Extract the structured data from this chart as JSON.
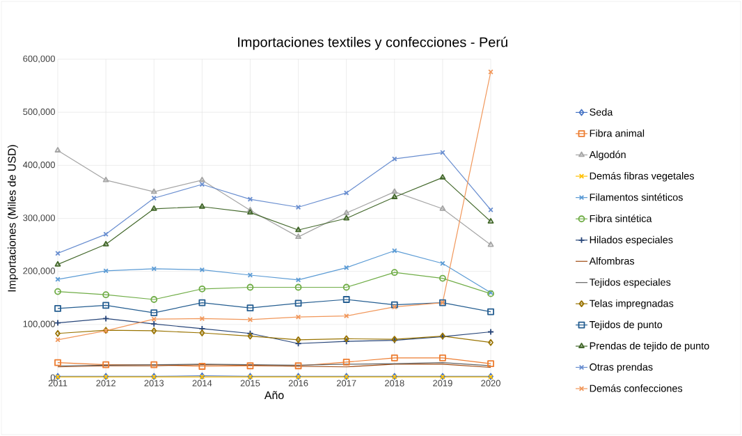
{
  "chart_data": {
    "type": "line",
    "title": "Importaciones textiles y confecciones - Perú",
    "xlabel": "Año",
    "ylabel": "Importaciones (Miles de USD)",
    "x": [
      2011,
      2012,
      2013,
      2014,
      2015,
      2016,
      2017,
      2018,
      2019,
      2020
    ],
    "xlim": [
      2011,
      2020
    ],
    "xticks": [
      2011,
      2012,
      2013,
      2014,
      2015,
      2016,
      2017,
      2018,
      2019,
      2020
    ],
    "ylim": [
      0,
      600000
    ],
    "yticks": [
      {
        "value": 0,
        "label": "0"
      },
      {
        "value": 100000,
        "label": "100,000"
      },
      {
        "value": 200000,
        "label": "200,000"
      },
      {
        "value": 300000,
        "label": "300,000"
      },
      {
        "value": 400000,
        "label": "400,000"
      },
      {
        "value": 500000,
        "label": "500,000"
      },
      {
        "value": 600000,
        "label": "600,000"
      }
    ],
    "grid": true,
    "legend": "right",
    "series": [
      {
        "name": "Seda",
        "color": "#4472c4",
        "marker": "diamond",
        "values": [
          2000,
          2000,
          2000,
          3000,
          2000,
          2000,
          2000,
          2000,
          2000,
          2000
        ]
      },
      {
        "name": "Fibra animal",
        "color": "#ed7d31",
        "marker": "square",
        "values": [
          28000,
          24000,
          24000,
          21000,
          22000,
          22000,
          29000,
          37000,
          37000,
          26000
        ]
      },
      {
        "name": "Algodón",
        "color": "#a5a5a5",
        "marker": "triangle",
        "values": [
          428000,
          372000,
          350000,
          372000,
          315000,
          265000,
          310000,
          350000,
          318000,
          250000
        ]
      },
      {
        "name": "Demás fibras vegetales",
        "color": "#ffc000",
        "marker": "cross",
        "values": [
          1000,
          1000,
          1000,
          1000,
          1000,
          1000,
          1000,
          1000,
          1000,
          1000
        ]
      },
      {
        "name": "Filamentos sintéticos",
        "color": "#5b9bd5",
        "marker": "cross",
        "values": [
          185000,
          201000,
          205000,
          203000,
          193000,
          184000,
          207000,
          239000,
          215000,
          160000
        ]
      },
      {
        "name": "Fibra sintética",
        "color": "#70ad47",
        "marker": "circle",
        "values": [
          162000,
          156000,
          147000,
          167000,
          170000,
          170000,
          170000,
          198000,
          187000,
          158000
        ]
      },
      {
        "name": "Hilados especiales",
        "color": "#264478",
        "marker": "plus",
        "values": [
          103000,
          111000,
          101000,
          92000,
          83000,
          64000,
          68000,
          70000,
          77000,
          86000
        ]
      },
      {
        "name": "Alfombras",
        "color": "#9e480e",
        "marker": "none",
        "values": [
          20000,
          22000,
          22000,
          24000,
          23000,
          21000,
          20000,
          25000,
          25000,
          19000
        ]
      },
      {
        "name": "Tejidos especiales",
        "color": "#636363",
        "marker": "none",
        "values": [
          22000,
          23000,
          24000,
          25000,
          24000,
          23000,
          25000,
          26000,
          28000,
          22000
        ]
      },
      {
        "name": "Telas impregnadas",
        "color": "#997300",
        "marker": "diamond",
        "values": [
          83000,
          89000,
          88000,
          84000,
          78000,
          71000,
          73000,
          72000,
          78000,
          66000
        ]
      },
      {
        "name": "Tejidos de punto",
        "color": "#255e91",
        "marker": "square",
        "values": [
          130000,
          136000,
          122000,
          141000,
          131000,
          140000,
          147000,
          137000,
          141000,
          124000
        ]
      },
      {
        "name": "Prendas de tejido de punto",
        "color": "#43682b",
        "marker": "triangle",
        "values": [
          213000,
          251000,
          318000,
          322000,
          311000,
          278000,
          300000,
          340000,
          377000,
          294000
        ]
      },
      {
        "name": "Otras prendas",
        "color": "#698ed0",
        "marker": "cross",
        "values": [
          234000,
          270000,
          338000,
          364000,
          336000,
          321000,
          348000,
          412000,
          424000,
          316000
        ]
      },
      {
        "name": "Demás confecciones",
        "color": "#f1975a",
        "marker": "cross",
        "values": [
          71000,
          88000,
          110000,
          111000,
          109000,
          114000,
          116000,
          133000,
          141000,
          576000
        ]
      }
    ]
  }
}
